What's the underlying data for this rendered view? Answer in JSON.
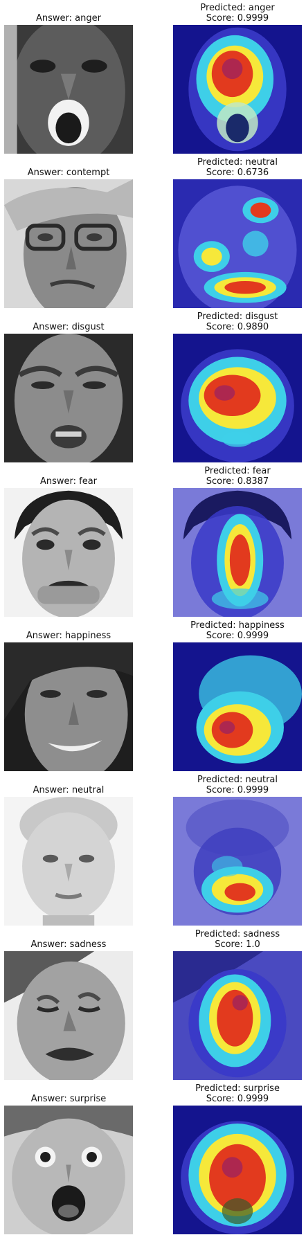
{
  "panels": [
    {
      "answer": "Answer: anger",
      "predicted": "Predicted: anger",
      "score": "Score: 0.9999",
      "true_label": "anger",
      "predicted_label": "anger",
      "score_value": 0.9999
    },
    {
      "answer": "Answer: contempt",
      "predicted": "Predicted: neutral",
      "score": "Score: 0.6736",
      "true_label": "contempt",
      "predicted_label": "neutral",
      "score_value": 0.6736
    },
    {
      "answer": "Answer: disgust",
      "predicted": "Predicted: disgust",
      "score": "Score: 0.9890",
      "true_label": "disgust",
      "predicted_label": "disgust",
      "score_value": 0.989
    },
    {
      "answer": "Answer: fear",
      "predicted": "Predicted: fear",
      "score": "Score: 0.8387",
      "true_label": "fear",
      "predicted_label": "fear",
      "score_value": 0.8387
    },
    {
      "answer": "Answer: happiness",
      "predicted": "Predicted: happiness",
      "score": "Score: 0.9999",
      "true_label": "happiness",
      "predicted_label": "happiness",
      "score_value": 0.9999
    },
    {
      "answer": "Answer: neutral",
      "predicted": "Predicted: neutral",
      "score": "Score: 0.9999",
      "true_label": "neutral",
      "predicted_label": "neutral",
      "score_value": 0.9999
    },
    {
      "answer": "Answer: sadness",
      "predicted": "Predicted: sadness",
      "score": "Score: 1.0",
      "true_label": "sadness",
      "predicted_label": "sadness",
      "score_value": 1.0
    },
    {
      "answer": "Answer: surprise",
      "predicted": "Predicted: surprise",
      "score": "Score: 0.9999",
      "true_label": "surprise",
      "predicted_label": "surprise",
      "score_value": 0.9999
    }
  ],
  "colors": {
    "heatmap_cold": "#1a1aa8",
    "heatmap_cool": "#3ecfe8",
    "heatmap_warm": "#f6e83a",
    "heatmap_hot": "#e23a1e"
  }
}
